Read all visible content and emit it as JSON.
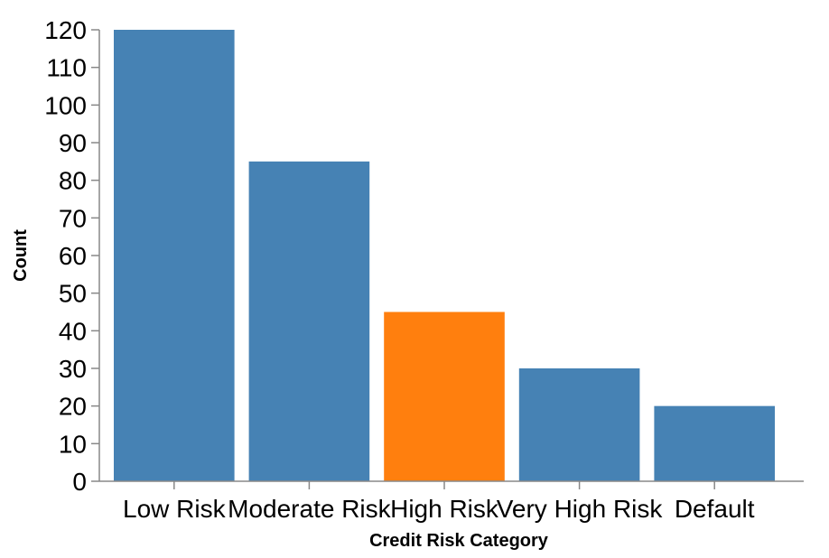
{
  "chart_data": {
    "type": "bar",
    "title": "",
    "xlabel": "Credit Risk Category",
    "ylabel": "Count",
    "categories": [
      "Low Risk",
      "Moderate Risk",
      "High Risk",
      "Very High Risk",
      "Default"
    ],
    "values": [
      120,
      85,
      45,
      30,
      20
    ],
    "ylim": [
      0,
      120
    ],
    "yticks": [
      0,
      10,
      20,
      30,
      40,
      50,
      60,
      70,
      80,
      90,
      100,
      110,
      120
    ],
    "grid": false,
    "colors": {
      "default": "#4682b4",
      "highlight": "#ff7f0e"
    },
    "highlighted_category": "High Risk"
  }
}
